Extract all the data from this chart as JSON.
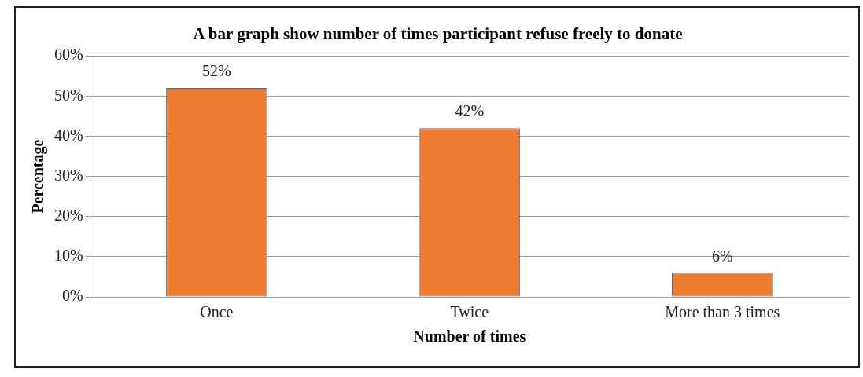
{
  "chart_data": {
    "type": "bar",
    "title": "A bar graph show number of times participant refuse freely to donate",
    "xlabel": "Number of times",
    "ylabel": "Percentage",
    "categories": [
      "Once",
      "Twice",
      "More than 3 times"
    ],
    "values": [
      52,
      42,
      6
    ],
    "color": "#ed7d31",
    "value_labels": [
      "52%",
      "42%",
      "6%"
    ],
    "ylim": [
      0,
      60
    ],
    "yticks": [
      {
        "value": 0,
        "label": "0%"
      },
      {
        "value": 10,
        "label": "10%"
      },
      {
        "value": 20,
        "label": "20%"
      },
      {
        "value": 30,
        "label": "30%"
      },
      {
        "value": 40,
        "label": "40%"
      },
      {
        "value": 50,
        "label": "50%"
      },
      {
        "value": 60,
        "label": "60%"
      }
    ],
    "grid": "y",
    "legend": false
  }
}
